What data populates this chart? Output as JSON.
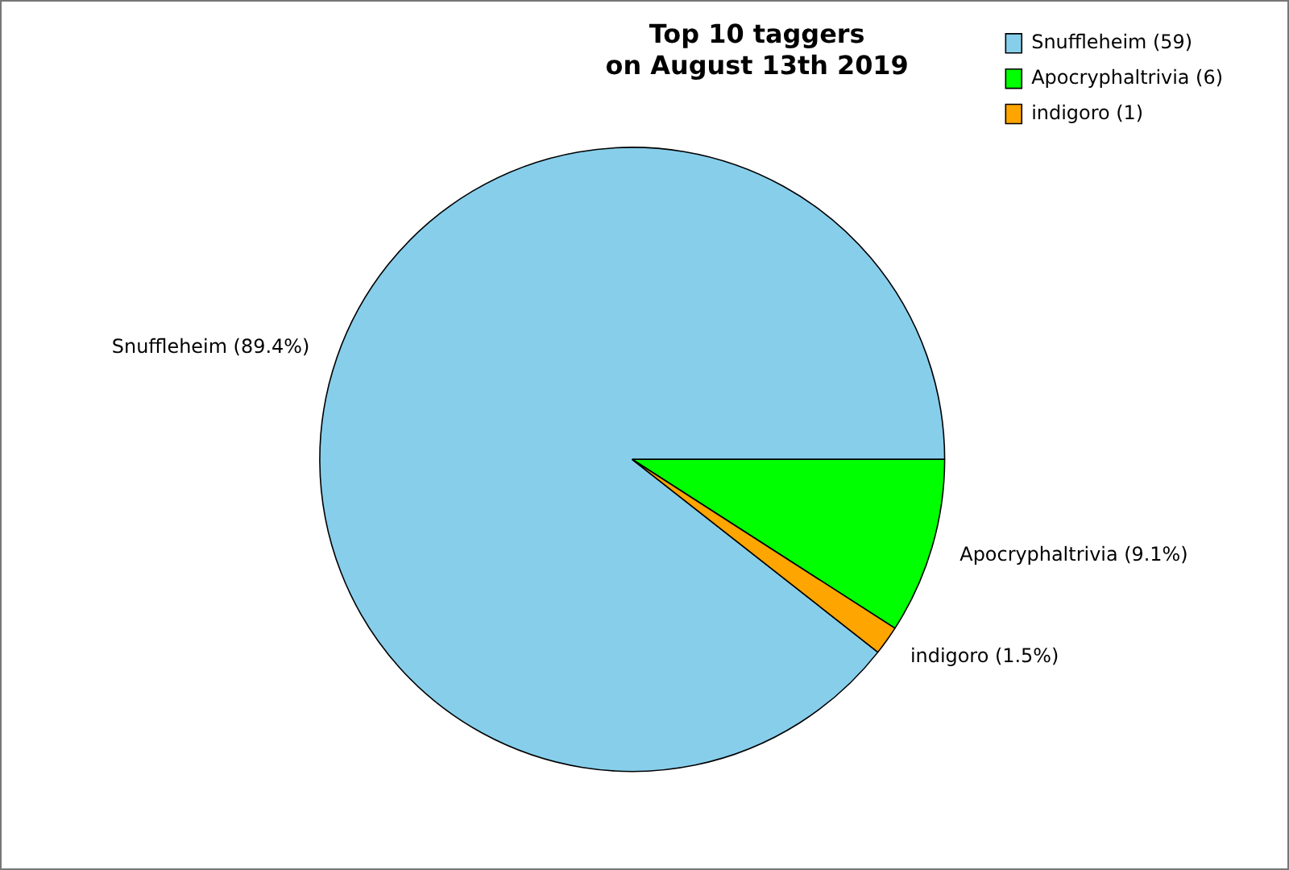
{
  "chart_data": {
    "type": "pie",
    "title": "Top 10 taggers\non August 13th 2019",
    "categories": [
      "Snuffleheim (59)",
      "Apocryphaltrivia (6)",
      "indigoro (1)"
    ],
    "values": [
      89.4,
      9.1,
      1.5
    ],
    "colors": [
      "#87ceeb",
      "#00ff00",
      "#ffa500"
    ],
    "value_labels": [
      "Snuffleheim (89.4%)",
      "Apocryphaltrivia (9.1%)",
      "indigoro (1.5%)"
    ],
    "legend": "top right"
  }
}
